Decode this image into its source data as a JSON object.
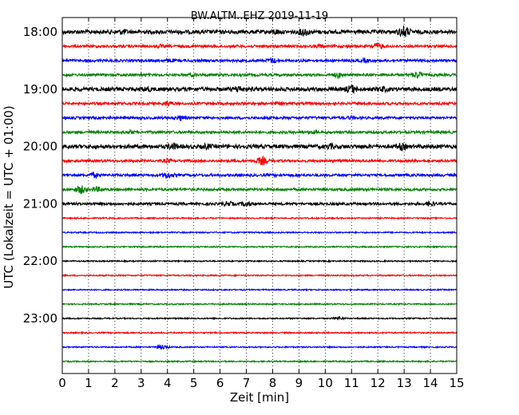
{
  "chart_data": {
    "type": "line",
    "title": "BW.ALTM..EHZ 2019-11-19",
    "xlabel": "Zeit  [min]",
    "ylabel": "UTC (Lokalzeit = UTC + 01:00)",
    "xlim": [
      0,
      15
    ],
    "x_ticks": [
      "0",
      "1",
      "2",
      "3",
      "4",
      "5",
      "6",
      "7",
      "8",
      "9",
      "10",
      "11",
      "12",
      "13",
      "14",
      "15"
    ],
    "y_ticks": [
      "18:00",
      "19:00",
      "20:00",
      "21:00",
      "22:00",
      "23:00"
    ],
    "grid": "vertical dotted at each minute",
    "colors": [
      "#000000",
      "#ff0000",
      "#0000ff",
      "#008000"
    ],
    "traces": [
      {
        "start": "18:00",
        "color": "#000000",
        "amp": 3,
        "events": [
          [
            9.2,
            5
          ],
          [
            8.1,
            3
          ],
          [
            2.3,
            3
          ],
          [
            13.0,
            7
          ]
        ]
      },
      {
        "start": "18:15",
        "color": "#ff0000",
        "amp": 2,
        "events": [
          [
            12.0,
            4
          ],
          [
            3.7,
            2
          ],
          [
            9.8,
            2
          ]
        ]
      },
      {
        "start": "18:30",
        "color": "#0000ff",
        "amp": 2,
        "events": [
          [
            8.0,
            3
          ],
          [
            4.1,
            2
          ],
          [
            11.5,
            2
          ]
        ]
      },
      {
        "start": "18:45",
        "color": "#008000",
        "amp": 2,
        "events": [
          [
            13.5,
            4
          ],
          [
            10.5,
            3
          ],
          [
            5.0,
            2
          ]
        ]
      },
      {
        "start": "19:00",
        "color": "#000000",
        "amp": 3,
        "events": [
          [
            11.0,
            5
          ],
          [
            6.7,
            4
          ],
          [
            3.2,
            3
          ],
          [
            12.2,
            3
          ]
        ]
      },
      {
        "start": "19:15",
        "color": "#ff0000",
        "amp": 2,
        "events": [
          [
            4.0,
            3
          ],
          [
            8.2,
            2
          ]
        ]
      },
      {
        "start": "19:30",
        "color": "#0000ff",
        "amp": 2,
        "events": [
          [
            4.5,
            3
          ],
          [
            11.0,
            2
          ]
        ]
      },
      {
        "start": "19:45",
        "color": "#008000",
        "amp": 2,
        "events": [
          [
            9.5,
            2
          ],
          [
            2.6,
            2
          ]
        ]
      },
      {
        "start": "20:00",
        "color": "#000000",
        "amp": 3,
        "events": [
          [
            4.2,
            4
          ],
          [
            12.9,
            4
          ],
          [
            5.5,
            3
          ],
          [
            10.2,
            3
          ]
        ]
      },
      {
        "start": "20:15",
        "color": "#ff0000",
        "amp": 2,
        "events": [
          [
            7.6,
            5
          ],
          [
            4.0,
            2
          ]
        ]
      },
      {
        "start": "20:30",
        "color": "#0000ff",
        "amp": 2,
        "events": [
          [
            1.2,
            3
          ],
          [
            4.0,
            4
          ]
        ]
      },
      {
        "start": "20:45",
        "color": "#008000",
        "amp": 2,
        "events": [
          [
            0.7,
            5
          ],
          [
            1.3,
            3
          ]
        ]
      },
      {
        "start": "21:00",
        "color": "#000000",
        "amp": 2,
        "events": [
          [
            7.0,
            3
          ],
          [
            14.0,
            3
          ],
          [
            6.3,
            3
          ]
        ]
      },
      {
        "start": "21:15",
        "color": "#ff0000",
        "amp": 1,
        "events": []
      },
      {
        "start": "21:30",
        "color": "#0000ff",
        "amp": 1,
        "events": []
      },
      {
        "start": "21:45",
        "color": "#008000",
        "amp": 1,
        "events": []
      },
      {
        "start": "22:00",
        "color": "#000000",
        "amp": 1,
        "events": []
      },
      {
        "start": "22:15",
        "color": "#ff0000",
        "amp": 1,
        "events": []
      },
      {
        "start": "22:30",
        "color": "#0000ff",
        "amp": 1,
        "events": []
      },
      {
        "start": "22:45",
        "color": "#008000",
        "amp": 1,
        "events": []
      },
      {
        "start": "23:00",
        "color": "#000000",
        "amp": 1,
        "events": [
          [
            10.5,
            2
          ]
        ]
      },
      {
        "start": "23:15",
        "color": "#ff0000",
        "amp": 1,
        "events": []
      },
      {
        "start": "23:30",
        "color": "#0000ff",
        "amp": 1,
        "events": [
          [
            3.8,
            3
          ]
        ]
      },
      {
        "start": "23:45",
        "color": "#008000",
        "amp": 1,
        "events": []
      }
    ]
  }
}
